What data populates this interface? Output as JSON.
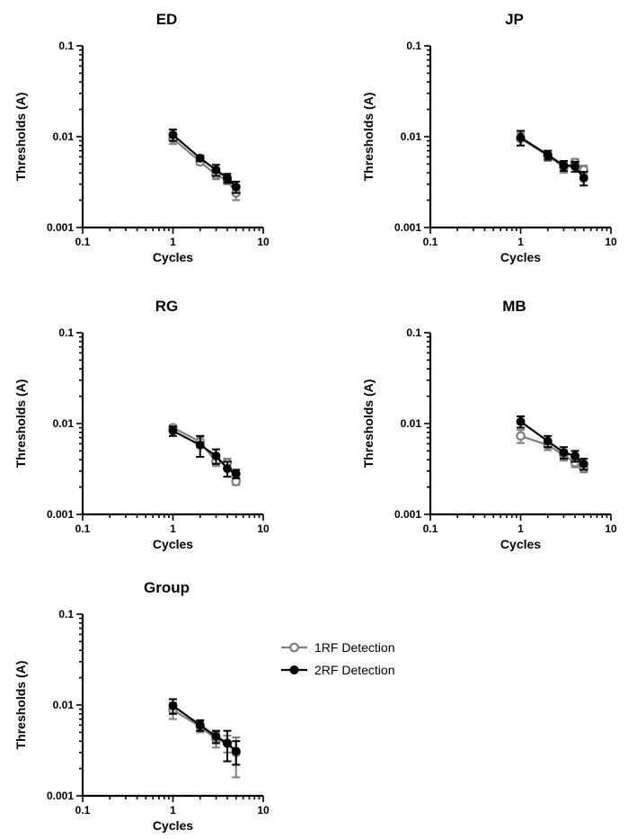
{
  "legend": {
    "items": [
      {
        "label": "1RF Detection",
        "color": "#808080",
        "marker": "open-circle"
      },
      {
        "label": "2RF Detection",
        "color": "#000000",
        "marker": "filled-circle"
      }
    ],
    "placement": "right of Group panel"
  },
  "chart_data": [
    {
      "type": "line",
      "title": "ED",
      "xlabel": "Cycles",
      "ylabel": "Thresholds (A)",
      "xscale": "log",
      "yscale": "log",
      "xlim": [
        0.1,
        10
      ],
      "ylim": [
        0.001,
        0.1
      ],
      "xticks": [
        "0.1",
        "1",
        "10"
      ],
      "yticks": [
        "0.001",
        "0.01",
        "0.1"
      ],
      "grid": false,
      "x": [
        1,
        2,
        3,
        4,
        5
      ],
      "series": [
        {
          "name": "1RF Detection",
          "values": [
            0.0095,
            0.0053,
            0.0038,
            0.0033,
            0.0024
          ],
          "err": [
            0.0012,
            0.0004,
            0.0004,
            0.0003,
            0.0004
          ]
        },
        {
          "name": "2RF Detection",
          "values": [
            0.0105,
            0.0058,
            0.0043,
            0.0035,
            0.0028
          ],
          "err": [
            0.0015,
            0.0004,
            0.0006,
            0.0004,
            0.0004
          ]
        }
      ]
    },
    {
      "type": "line",
      "title": "JP",
      "xlabel": "Cycles",
      "ylabel": "Thresholds (A)",
      "xscale": "log",
      "yscale": "log",
      "xlim": [
        0.1,
        10
      ],
      "ylim": [
        0.001,
        0.1
      ],
      "xticks": [
        "0.1",
        "1",
        "10"
      ],
      "yticks": [
        "0.001",
        "0.01",
        "0.1"
      ],
      "grid": false,
      "x": [
        1,
        2,
        3,
        4,
        5
      ],
      "series": [
        {
          "name": "1RF Detection",
          "values": [
            0.0095,
            0.0062,
            0.0046,
            0.0052,
            0.0043
          ],
          "err": [
            0.0015,
            0.0008,
            0.0006,
            0.0005,
            0.0005
          ]
        },
        {
          "name": "2RF Detection",
          "values": [
            0.0098,
            0.0063,
            0.0048,
            0.0047,
            0.0035
          ],
          "err": [
            0.0018,
            0.0007,
            0.0006,
            0.0006,
            0.0006
          ]
        }
      ]
    },
    {
      "type": "line",
      "title": "RG",
      "xlabel": "Cycles",
      "ylabel": "Thresholds (A)",
      "xscale": "log",
      "yscale": "log",
      "xlim": [
        0.1,
        10
      ],
      "ylim": [
        0.001,
        0.1
      ],
      "xticks": [
        "0.1",
        "1",
        "10"
      ],
      "yticks": [
        "0.001",
        "0.01",
        "0.1"
      ],
      "grid": false,
      "x": [
        1,
        2,
        3,
        4,
        5
      ],
      "series": [
        {
          "name": "1RF Detection",
          "values": [
            0.009,
            0.0063,
            0.0038,
            0.0037,
            0.0023
          ],
          "err": [
            0.0006,
            0.0008,
            0.0004,
            0.0004,
            0.0002
          ]
        },
        {
          "name": "2RF Detection",
          "values": [
            0.0083,
            0.0058,
            0.0044,
            0.0032,
            0.0028
          ],
          "err": [
            0.001,
            0.0015,
            0.0008,
            0.0006,
            0.0003
          ]
        }
      ]
    },
    {
      "type": "line",
      "title": "MB",
      "xlabel": "Cycles",
      "ylabel": "Thresholds (A)",
      "xscale": "log",
      "yscale": "log",
      "xlim": [
        0.1,
        10
      ],
      "ylim": [
        0.001,
        0.1
      ],
      "xticks": [
        "0.1",
        "1",
        "10"
      ],
      "yticks": [
        "0.001",
        "0.01",
        "0.1"
      ],
      "grid": false,
      "x": [
        1,
        2,
        3,
        4,
        5
      ],
      "series": [
        {
          "name": "1RF Detection",
          "values": [
            0.0073,
            0.0058,
            0.0045,
            0.0037,
            0.0032
          ],
          "err": [
            0.0012,
            0.0007,
            0.0006,
            0.0004,
            0.0003
          ]
        },
        {
          "name": "2RF Detection",
          "values": [
            0.0105,
            0.0064,
            0.0048,
            0.0044,
            0.0036
          ],
          "err": [
            0.0015,
            0.0009,
            0.0007,
            0.0006,
            0.0005
          ]
        }
      ]
    },
    {
      "type": "line",
      "title": "Group",
      "xlabel": "Cycles",
      "ylabel": "Thresholds (A)",
      "xscale": "log",
      "yscale": "log",
      "xlim": [
        0.1,
        10
      ],
      "ylim": [
        0.001,
        0.1
      ],
      "xticks": [
        "0.1",
        "1",
        "10"
      ],
      "yticks": [
        "0.001",
        "0.01",
        "0.1"
      ],
      "grid": false,
      "x": [
        1,
        2,
        3,
        4,
        5
      ],
      "series": [
        {
          "name": "1RF Detection",
          "values": [
            0.0088,
            0.0058,
            0.0042,
            0.0038,
            0.003
          ],
          "err": [
            0.0018,
            0.0008,
            0.0008,
            0.0008,
            0.0014
          ]
        },
        {
          "name": "2RF Detection",
          "values": [
            0.0098,
            0.006,
            0.0045,
            0.0038,
            0.0031
          ],
          "err": [
            0.0018,
            0.0008,
            0.0007,
            0.0014,
            0.0009
          ]
        }
      ]
    }
  ]
}
